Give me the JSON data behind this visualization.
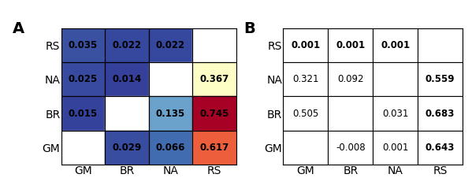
{
  "panel_A_label": "A",
  "panel_B_label": "B",
  "row_labels": [
    "RS",
    "NA",
    "BR",
    "GM"
  ],
  "col_labels": [
    "GM",
    "BR",
    "NA",
    "RS"
  ],
  "heatmap_values": [
    [
      0.035,
      0.022,
      0.022,
      null
    ],
    [
      0.025,
      0.014,
      null,
      0.367
    ],
    [
      0.015,
      null,
      0.135,
      0.745
    ],
    [
      null,
      0.029,
      0.066,
      0.617
    ]
  ],
  "heatmap_display": [
    [
      "0.035",
      "0.022",
      "0.022",
      ""
    ],
    [
      "0.025",
      "0.014",
      "",
      "0.367"
    ],
    [
      "0.015",
      "",
      "0.135",
      "0.745"
    ],
    [
      "",
      "0.029",
      "0.066",
      "0.617"
    ]
  ],
  "table_values": [
    [
      "0.001",
      "0.001",
      "0.001",
      ""
    ],
    [
      "0.321",
      "0.092",
      "",
      "0.559"
    ],
    [
      "0.505",
      "",
      "0.031",
      "0.683"
    ],
    [
      "",
      "-0.008",
      "0.001",
      "0.643"
    ]
  ],
  "table_bold": [
    [
      true,
      true,
      true,
      false
    ],
    [
      false,
      false,
      false,
      true
    ],
    [
      false,
      false,
      false,
      true
    ],
    [
      false,
      false,
      false,
      true
    ]
  ],
  "colormap": "RdYlBu_r",
  "vmin": 0.0,
  "vmax": 0.75,
  "figsize": [
    5.99,
    2.4
  ],
  "dpi": 100
}
